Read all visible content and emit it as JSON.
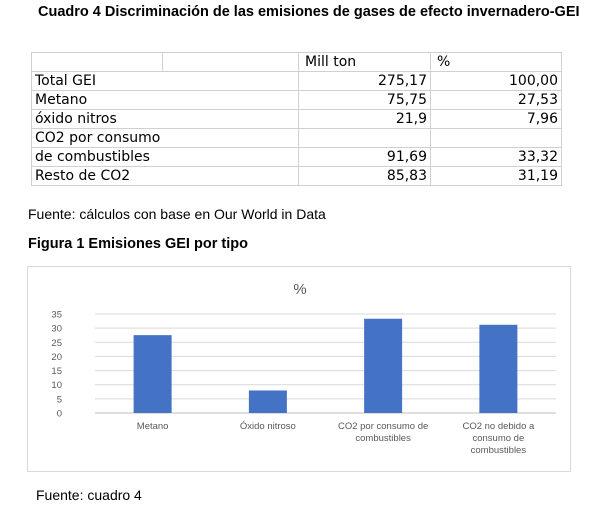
{
  "table_caption": "Cuadro 4 Discriminación de las emisiones de gases de efecto invernadero-GEI",
  "table": {
    "headers": [
      "",
      "",
      "Mill ton",
      "%"
    ],
    "rows": [
      {
        "label": "Total GEI",
        "mill_ton": "275,17",
        "pct": "100,00"
      },
      {
        "label": "Metano",
        "mill_ton": "75,75",
        "pct": "27,53"
      },
      {
        "label": "óxido nitros",
        "mill_ton": "21,9",
        "pct": "7,96"
      },
      {
        "label": "CO2 por consumo",
        "mill_ton": "",
        "pct": ""
      },
      {
        "label": "de combustibles",
        "mill_ton": "91,69",
        "pct": "33,32"
      },
      {
        "label": "Resto de CO2",
        "mill_ton": "85,83",
        "pct": "31,19"
      }
    ]
  },
  "table_source": "Fuente: cálculos con base en Our World in Data",
  "figure_title": "Figura 1 Emisiones GEI por tipo",
  "figure_source": "Fuente: cuadro 4",
  "chart_data": {
    "type": "bar",
    "title": "%",
    "categories": [
      [
        "Metano"
      ],
      [
        "Óxido nitroso"
      ],
      [
        "CO2 por consumo de",
        "combustibles"
      ],
      [
        "CO2 no debido a",
        "consumo de",
        "combustibles"
      ]
    ],
    "values": [
      27.53,
      7.96,
      33.32,
      31.19
    ],
    "ylim": [
      0,
      35
    ],
    "yticks": [
      0,
      5,
      10,
      15,
      20,
      25,
      30,
      35
    ],
    "grid": true,
    "legend": "none",
    "bar_color": "#4472c4"
  }
}
